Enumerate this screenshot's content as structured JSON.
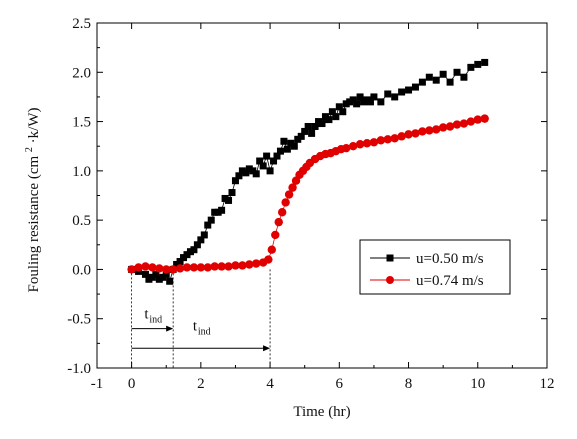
{
  "chart_data": {
    "type": "scatter",
    "xlabel": "Time (hr)",
    "ylabel_main": "Fouling resistance  (cm",
    "ylabel_sup": "2",
    "ylabel_tail": "·k/W)",
    "xlim": [
      -1,
      12
    ],
    "ylim": [
      -1.0,
      2.5
    ],
    "xticks": [
      "-1",
      "0",
      "2",
      "4",
      "6",
      "8",
      "10",
      "12"
    ],
    "yticks": [
      "-1.0",
      "-0.5",
      "0.0",
      "0.5",
      "1.0",
      "1.5",
      "2.0",
      "2.5"
    ],
    "grid": false,
    "legend_position": "center-right",
    "series": [
      {
        "name": "u=0.50 m/s",
        "marker": "square",
        "color": "#000000",
        "x": [
          0.0,
          0.2,
          0.4,
          0.5,
          0.6,
          0.7,
          0.8,
          0.9,
          1.0,
          1.1,
          1.2,
          1.3,
          1.4,
          1.5,
          1.6,
          1.7,
          1.8,
          1.9,
          2.0,
          2.1,
          2.2,
          2.3,
          2.4,
          2.5,
          2.6,
          2.7,
          2.8,
          2.9,
          3.0,
          3.1,
          3.2,
          3.3,
          3.4,
          3.5,
          3.6,
          3.7,
          3.8,
          3.9,
          4.0,
          4.1,
          4.2,
          4.3,
          4.4,
          4.5,
          4.6,
          4.7,
          4.8,
          4.9,
          5.0,
          5.1,
          5.2,
          5.3,
          5.4,
          5.5,
          5.6,
          5.7,
          5.8,
          5.9,
          6.0,
          6.1,
          6.2,
          6.3,
          6.4,
          6.5,
          6.6,
          6.7,
          6.8,
          6.9,
          7.0,
          7.2,
          7.4,
          7.6,
          7.8,
          8.0,
          8.2,
          8.4,
          8.6,
          8.8,
          9.0,
          9.2,
          9.4,
          9.6,
          9.8,
          10.0,
          10.2
        ],
        "y": [
          0.0,
          -0.02,
          -0.05,
          -0.1,
          -0.08,
          -0.05,
          -0.1,
          -0.08,
          -0.05,
          -0.12,
          0.0,
          0.05,
          0.08,
          0.12,
          0.15,
          0.18,
          0.2,
          0.25,
          0.3,
          0.35,
          0.45,
          0.5,
          0.58,
          0.58,
          0.6,
          0.72,
          0.7,
          0.78,
          0.9,
          0.95,
          1.0,
          0.98,
          1.02,
          1.0,
          0.97,
          1.1,
          1.05,
          1.15,
          1.0,
          1.1,
          1.15,
          1.2,
          1.3,
          1.22,
          1.28,
          1.25,
          1.32,
          1.35,
          1.4,
          1.45,
          1.38,
          1.45,
          1.5,
          1.48,
          1.55,
          1.52,
          1.6,
          1.55,
          1.65,
          1.6,
          1.68,
          1.7,
          1.72,
          1.68,
          1.75,
          1.7,
          1.72,
          1.7,
          1.75,
          1.7,
          1.78,
          1.75,
          1.8,
          1.82,
          1.85,
          1.9,
          1.95,
          1.92,
          1.98,
          1.9,
          2.0,
          1.95,
          2.05,
          2.08,
          2.1
        ]
      },
      {
        "name": "u=0.74 m/s",
        "marker": "circle",
        "color": "#e00000",
        "x": [
          0.0,
          0.2,
          0.4,
          0.6,
          0.8,
          1.0,
          1.2,
          1.4,
          1.6,
          1.8,
          2.0,
          2.2,
          2.4,
          2.6,
          2.8,
          3.0,
          3.2,
          3.4,
          3.6,
          3.8,
          3.95,
          4.05,
          4.15,
          4.25,
          4.35,
          4.45,
          4.55,
          4.65,
          4.75,
          4.85,
          4.95,
          5.05,
          5.15,
          5.3,
          5.45,
          5.6,
          5.75,
          5.9,
          6.05,
          6.2,
          6.4,
          6.6,
          6.8,
          7.0,
          7.2,
          7.4,
          7.6,
          7.8,
          8.0,
          8.2,
          8.4,
          8.6,
          8.8,
          9.0,
          9.2,
          9.4,
          9.6,
          9.8,
          10.0,
          10.2
        ],
        "y": [
          0.0,
          0.02,
          0.03,
          0.02,
          0.01,
          0.0,
          0.0,
          0.01,
          0.02,
          0.02,
          0.02,
          0.02,
          0.03,
          0.03,
          0.03,
          0.04,
          0.04,
          0.05,
          0.06,
          0.07,
          0.1,
          0.2,
          0.35,
          0.48,
          0.58,
          0.68,
          0.76,
          0.83,
          0.9,
          0.96,
          1.0,
          1.04,
          1.08,
          1.12,
          1.15,
          1.17,
          1.18,
          1.2,
          1.22,
          1.23,
          1.25,
          1.27,
          1.28,
          1.29,
          1.31,
          1.32,
          1.33,
          1.35,
          1.37,
          1.38,
          1.4,
          1.41,
          1.42,
          1.44,
          1.45,
          1.47,
          1.48,
          1.5,
          1.52,
          1.53
        ]
      }
    ],
    "annotations": [
      {
        "text": "t",
        "sub": "ind",
        "x_start": 0,
        "x_end": 1.2
      },
      {
        "text": "t",
        "sub": "ind",
        "x_start": 0,
        "x_end": 4.0
      }
    ]
  }
}
